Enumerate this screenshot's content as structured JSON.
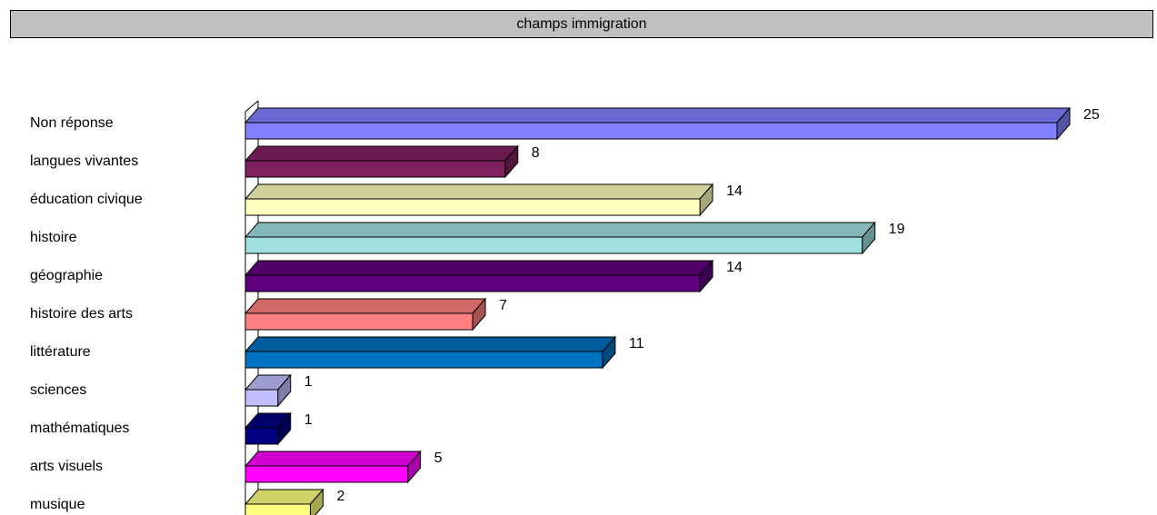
{
  "chart_data": {
    "type": "bar",
    "orientation": "horizontal",
    "style": "3d",
    "title": "champs immigration",
    "xlabel": "",
    "ylabel": "",
    "xlim": [
      0,
      25
    ],
    "grid": false,
    "legend": "none",
    "categories": [
      "Non réponse",
      "langues vivantes",
      "éducation civique",
      "histoire",
      "géographie",
      "histoire des arts",
      "littérature",
      "sciences",
      "mathématiques",
      "arts visuels",
      "musique"
    ],
    "values": [
      25,
      8,
      14,
      19,
      14,
      7,
      11,
      1,
      1,
      5,
      2
    ],
    "colors": [
      "#8080ff",
      "#802060",
      "#ffffc0",
      "#a0e0e0",
      "#600080",
      "#ff8080",
      "#0070c0",
      "#c0c0ff",
      "#000080",
      "#ff00ff",
      "#ffff80"
    ]
  }
}
